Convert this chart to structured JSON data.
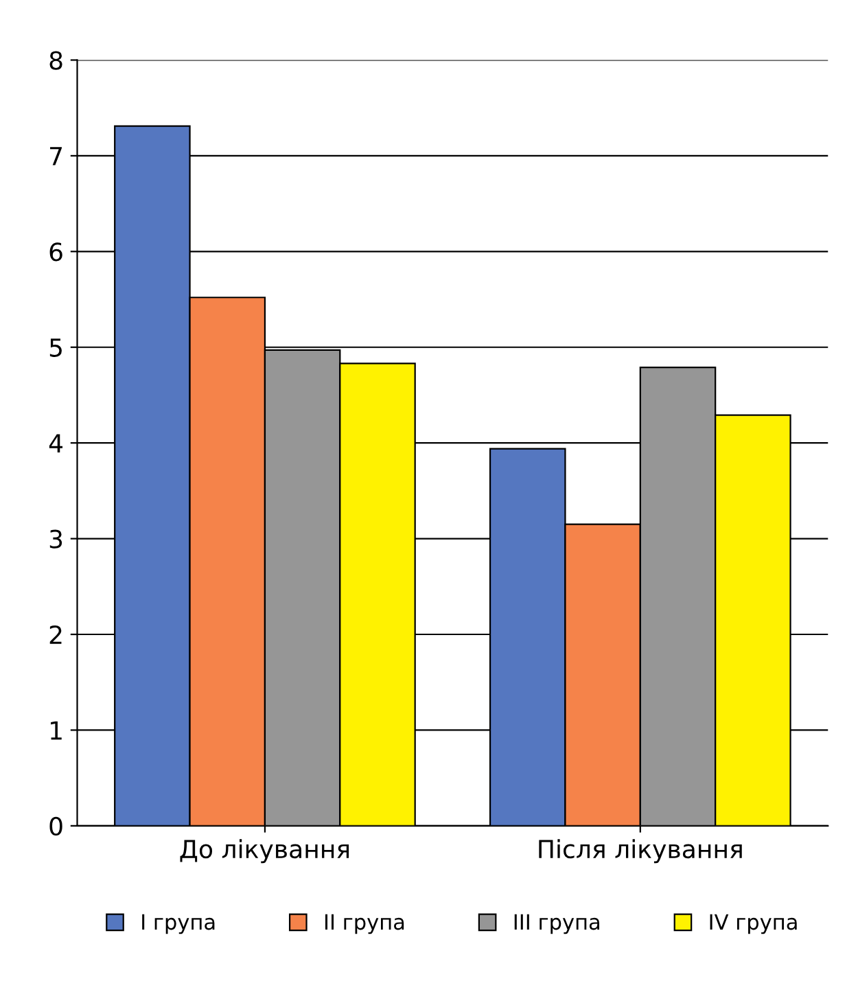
{
  "chart_data": {
    "type": "bar",
    "categories": [
      "До лікування",
      "Після лікування"
    ],
    "series": [
      {
        "name": "I група",
        "color": "#5577c0",
        "values": [
          7.31,
          3.94
        ]
      },
      {
        "name": "II група",
        "color": "#f5834a",
        "values": [
          5.52,
          3.15
        ]
      },
      {
        "name": "III група",
        "color": "#969696",
        "values": [
          4.97,
          4.79
        ]
      },
      {
        "name": "IV група",
        "color": "#fff200",
        "values": [
          4.83,
          4.29
        ]
      }
    ],
    "ylim": [
      0,
      8
    ],
    "yticks": [
      0,
      1,
      2,
      3,
      4,
      5,
      6,
      7,
      8
    ],
    "grid": "y",
    "legend": "bottom"
  }
}
